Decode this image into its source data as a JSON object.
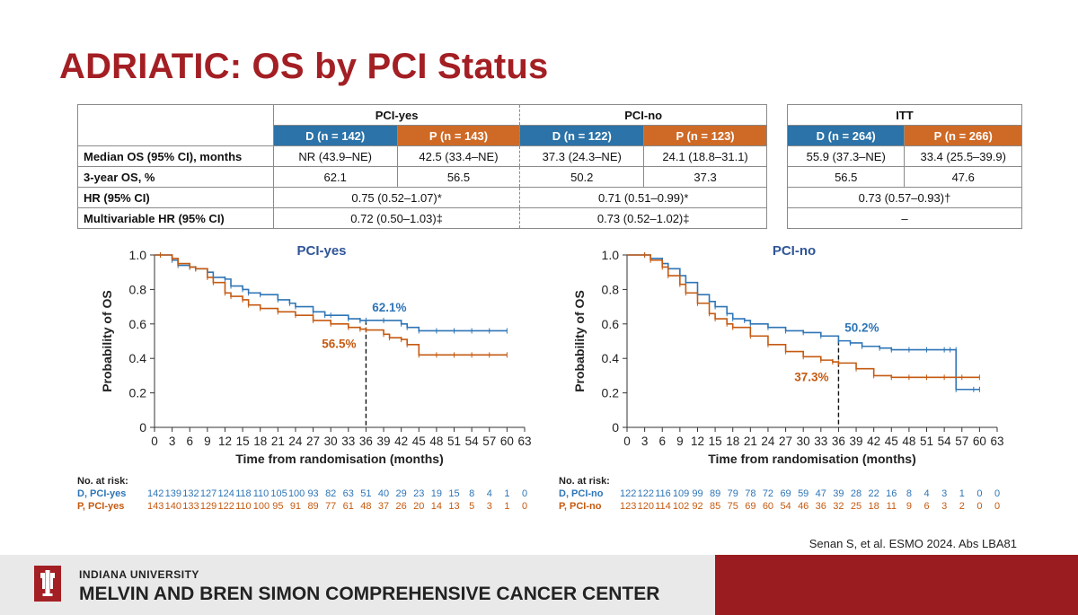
{
  "page_title": "ADRIATIC: OS by PCI Status",
  "table": {
    "group_headers": [
      "PCI-yes",
      "PCI-no",
      "ITT"
    ],
    "arm_headers": [
      "D (n = 142)",
      "P (n = 143)",
      "D (n = 122)",
      "P (n = 123)",
      "D (n = 264)",
      "P (n = 266)"
    ],
    "rows": [
      {
        "label": "Median OS (95% CI), months",
        "values": [
          "NR (43.9–NE)",
          "42.5 (33.4–NE)",
          "37.3 (24.3–NE)",
          "24.1 (18.8–31.1)",
          "55.9 (37.3–NE)",
          "33.4 (25.5–39.9)"
        ]
      },
      {
        "label": "3-year OS, %",
        "values": [
          "62.1",
          "56.5",
          "50.2",
          "37.3",
          "56.5",
          "47.6"
        ]
      },
      {
        "label": "HR (95% CI)",
        "values": [
          "0.75 (0.52–1.07)*",
          "0.71 (0.51–0.99)*",
          "0.73 (0.57–0.93)†"
        ]
      },
      {
        "label": "Multivariable HR (95% CI)",
        "values": [
          "0.72 (0.50–1.03)‡",
          "0.73 (0.52–1.02)‡",
          "–"
        ]
      }
    ]
  },
  "chart_data": [
    {
      "type": "line",
      "title": "PCI-yes",
      "xlabel": "Time from randomisation (months)",
      "ylabel": "Probability of OS",
      "xlim": [
        0,
        63
      ],
      "ylim": [
        0,
        1.0
      ],
      "xticks": [
        0,
        3,
        6,
        9,
        12,
        15,
        18,
        21,
        24,
        27,
        30,
        33,
        36,
        39,
        42,
        45,
        48,
        51,
        54,
        57,
        60,
        63
      ],
      "yticks": [
        "0",
        "0.2",
        "0.4",
        "0.6",
        "0.8",
        "1.0"
      ],
      "annotations": [
        {
          "text": "62.1%",
          "x": 36,
          "y": 0.621,
          "color": "#2e75b6"
        },
        {
          "text": "56.5%",
          "x": 36,
          "y": 0.565,
          "color": "#c55a11"
        }
      ],
      "series": [
        {
          "color": "#2e75b6",
          "x": [
            0,
            1,
            3,
            4,
            6,
            7,
            9,
            10,
            12,
            13,
            15,
            16,
            18,
            21,
            23,
            24,
            27,
            29,
            30,
            33,
            35,
            36,
            39,
            42,
            43,
            45,
            48,
            51,
            54,
            57,
            60
          ],
          "y": [
            1.0,
            1.0,
            0.97,
            0.94,
            0.93,
            0.92,
            0.9,
            0.87,
            0.86,
            0.82,
            0.8,
            0.78,
            0.77,
            0.74,
            0.72,
            0.7,
            0.67,
            0.65,
            0.65,
            0.63,
            0.62,
            0.621,
            0.62,
            0.6,
            0.58,
            0.56,
            0.56,
            0.56,
            0.56,
            0.56,
            0.56
          ]
        },
        {
          "color": "#c55a11",
          "x": [
            0,
            1,
            3,
            4,
            6,
            7,
            9,
            10,
            12,
            13,
            15,
            16,
            18,
            21,
            24,
            27,
            30,
            33,
            35,
            36,
            39,
            40,
            42,
            43,
            45,
            48,
            51,
            54,
            57,
            60
          ],
          "y": [
            1.0,
            1.0,
            0.98,
            0.95,
            0.93,
            0.92,
            0.87,
            0.84,
            0.78,
            0.76,
            0.74,
            0.71,
            0.69,
            0.67,
            0.65,
            0.62,
            0.6,
            0.58,
            0.57,
            0.565,
            0.54,
            0.52,
            0.51,
            0.48,
            0.42,
            0.42,
            0.42,
            0.42,
            0.42,
            0.42
          ]
        }
      ]
    },
    {
      "type": "line",
      "title": "PCI-no",
      "xlabel": "Time from randomisation (months)",
      "ylabel": "Probability of OS",
      "xlim": [
        0,
        63
      ],
      "ylim": [
        0,
        1.0
      ],
      "xticks": [
        0,
        3,
        6,
        9,
        12,
        15,
        18,
        21,
        24,
        27,
        30,
        33,
        36,
        39,
        42,
        45,
        48,
        51,
        54,
        57,
        60,
        63
      ],
      "yticks": [
        "0",
        "0.2",
        "0.4",
        "0.6",
        "0.8",
        "1.0"
      ],
      "annotations": [
        {
          "text": "50.2%",
          "x": 36,
          "y": 0.502,
          "color": "#2e75b6"
        },
        {
          "text": "37.3%",
          "x": 36,
          "y": 0.373,
          "color": "#c55a11"
        }
      ],
      "series": [
        {
          "color": "#2e75b6",
          "x": [
            0,
            3,
            4,
            6,
            7,
            9,
            10,
            12,
            14,
            15,
            17,
            18,
            20,
            21,
            24,
            27,
            30,
            33,
            36,
            38,
            40,
            43,
            45,
            48,
            51,
            54,
            55,
            56,
            56,
            59,
            60
          ],
          "y": [
            1.0,
            1.0,
            0.98,
            0.95,
            0.92,
            0.88,
            0.84,
            0.77,
            0.73,
            0.7,
            0.66,
            0.63,
            0.62,
            0.6,
            0.58,
            0.56,
            0.55,
            0.53,
            0.502,
            0.49,
            0.47,
            0.46,
            0.45,
            0.45,
            0.45,
            0.45,
            0.45,
            0.45,
            0.22,
            0.22,
            0.22
          ]
        },
        {
          "color": "#c55a11",
          "x": [
            0,
            3,
            4,
            6,
            7,
            9,
            10,
            12,
            14,
            15,
            17,
            18,
            21,
            24,
            27,
            30,
            33,
            35,
            36,
            39,
            42,
            45,
            48,
            51,
            54,
            57,
            60
          ],
          "y": [
            1.0,
            1.0,
            0.97,
            0.93,
            0.88,
            0.83,
            0.78,
            0.72,
            0.66,
            0.63,
            0.6,
            0.58,
            0.53,
            0.48,
            0.44,
            0.41,
            0.39,
            0.38,
            0.373,
            0.34,
            0.3,
            0.29,
            0.29,
            0.29,
            0.29,
            0.29,
            0.29
          ]
        }
      ]
    }
  ],
  "risk_tables": [
    {
      "heading": "No. at risk:",
      "rows": [
        {
          "label": "D, PCI-yes",
          "color": "#2e75b6",
          "values": [
            "142",
            "139",
            "132",
            "127",
            "124",
            "118",
            "110",
            "105",
            "100",
            "93",
            "82",
            "63",
            "51",
            "40",
            "29",
            "23",
            "19",
            "15",
            "8",
            "4",
            "1",
            "0"
          ]
        },
        {
          "label": "P, PCI-yes",
          "color": "#c55a11",
          "values": [
            "143",
            "140",
            "133",
            "129",
            "122",
            "110",
            "100",
            "95",
            "91",
            "89",
            "77",
            "61",
            "48",
            "37",
            "26",
            "20",
            "14",
            "13",
            "5",
            "3",
            "1",
            "0"
          ]
        }
      ]
    },
    {
      "heading": "No. at risk:",
      "rows": [
        {
          "label": "D, PCI-no",
          "color": "#2e75b6",
          "values": [
            "122",
            "122",
            "116",
            "109",
            "99",
            "89",
            "79",
            "78",
            "72",
            "69",
            "59",
            "47",
            "39",
            "28",
            "22",
            "16",
            "8",
            "4",
            "3",
            "1",
            "0",
            "0"
          ]
        },
        {
          "label": "P, PCI-no",
          "color": "#c55a11",
          "values": [
            "123",
            "120",
            "114",
            "102",
            "92",
            "85",
            "75",
            "69",
            "60",
            "54",
            "46",
            "36",
            "32",
            "25",
            "18",
            "11",
            "9",
            "6",
            "3",
            "2",
            "0",
            "0"
          ]
        }
      ]
    }
  ],
  "citation": "Senan S, et al. ESMO 2024. Abs LBA81",
  "footer": {
    "university": "INDIANA UNIVERSITY",
    "center": "MELVIN AND BREN SIMON COMPREHENSIVE CANCER CENTER",
    "logo_icon": "iu-trident-logo",
    "colors": {
      "brand_red": "#9b1c20",
      "grey": "#e9e9e9"
    }
  }
}
